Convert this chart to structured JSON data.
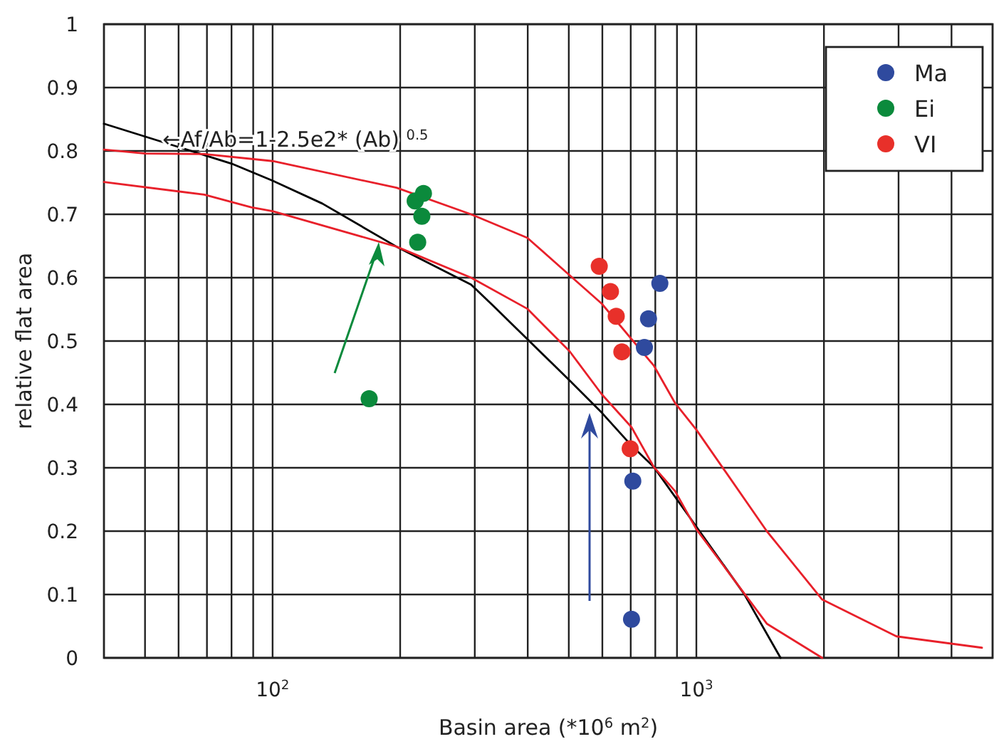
{
  "chart_data": {
    "type": "scatter",
    "xlabel": "Basin area (*10$^{6}$ m$^{2}$)",
    "ylabel": "relative flat area",
    "log": "x",
    "grid": true,
    "legend": "top right",
    "marker": "circle",
    "xlim": [
      40,
      5000
    ],
    "ylim": [
      0,
      1
    ],
    "xticks": [
      {
        "value": 50,
        "label": null
      },
      {
        "value": 60,
        "label": null
      },
      {
        "value": 70,
        "label": null
      },
      {
        "value": 80,
        "label": null
      },
      {
        "value": 90,
        "label": null
      },
      {
        "value": 100,
        "label": "10$^{2}$"
      },
      {
        "value": 200,
        "label": null
      },
      {
        "value": 300,
        "label": null
      },
      {
        "value": 400,
        "label": null
      },
      {
        "value": 500,
        "label": null
      },
      {
        "value": 600,
        "label": null
      },
      {
        "value": 700,
        "label": null
      },
      {
        "value": 800,
        "label": null
      },
      {
        "value": 900,
        "label": null
      },
      {
        "value": 1000,
        "label": "10$^{3}$"
      },
      {
        "value": 2000,
        "label": null
      },
      {
        "value": 3000,
        "label": null
      },
      {
        "value": 4000,
        "label": null
      }
    ],
    "yticks": [
      0,
      0.1,
      0.2,
      0.3,
      0.4,
      0.5,
      0.6,
      0.7,
      0.8,
      0.9,
      1
    ],
    "annotations": [
      {
        "text": "←Af/Ab=1-2.5e2* (Ab) $^{0.5}$",
        "x": 55,
        "y": 0.82
      }
    ],
    "series": [
      {
        "type": "line",
        "marker": "none",
        "color": "#000000",
        "line_style": "solid",
        "x": [
          40,
          80,
          100,
          131,
          196,
          294,
          330,
          399,
          502,
          598,
          703,
          794,
          1000,
          1296,
          1580
        ],
        "values": [
          0.843,
          0.78,
          0.753,
          0.717,
          0.649,
          0.589,
          0.557,
          0.503,
          0.438,
          0.387,
          0.335,
          0.301,
          0.207,
          0.101,
          0
        ]
      },
      {
        "type": "line",
        "marker": "none",
        "color": "#e8202a",
        "line_style": "solid",
        "x": [
          40,
          50,
          69,
          100,
          196,
          294,
          399,
          502,
          598,
          794,
          891,
          1000,
          1466,
          1981,
          2965,
          4720
        ],
        "values": [
          0.802,
          0.796,
          0.795,
          0.784,
          0.742,
          0.7,
          0.663,
          0.604,
          0.559,
          0.461,
          0.402,
          0.36,
          0.2,
          0.092,
          0.034,
          0.016
        ]
      },
      {
        "type": "line",
        "marker": "none",
        "color": "#e8202a",
        "line_style": "solid",
        "x": [
          40,
          69,
          89,
          100,
          196,
          294,
          399,
          502,
          598,
          703,
          794,
          891,
          1000,
          1466,
          1981
        ],
        "values": [
          0.751,
          0.731,
          0.711,
          0.705,
          0.649,
          0.6,
          0.551,
          0.484,
          0.416,
          0.364,
          0.301,
          0.263,
          0.203,
          0.054,
          0
        ]
      },
      {
        "name": "Ma",
        "color": "#2f4a9e",
        "x": [
          820,
          771,
          754,
          708,
          703
        ],
        "values": [
          0.591,
          0.535,
          0.49,
          0.279,
          0.061
        ]
      },
      {
        "name": "Ei",
        "color": "#0b8a3c",
        "x": [
          169,
          217,
          227,
          225,
          220
        ],
        "values": [
          0.409,
          0.721,
          0.733,
          0.697,
          0.656
        ]
      },
      {
        "name": "VI",
        "color": "#e8302a",
        "x": [
          590,
          627,
          647,
          667,
          698
        ],
        "values": [
          0.618,
          0.578,
          0.539,
          0.483,
          0.33
        ]
      }
    ]
  }
}
